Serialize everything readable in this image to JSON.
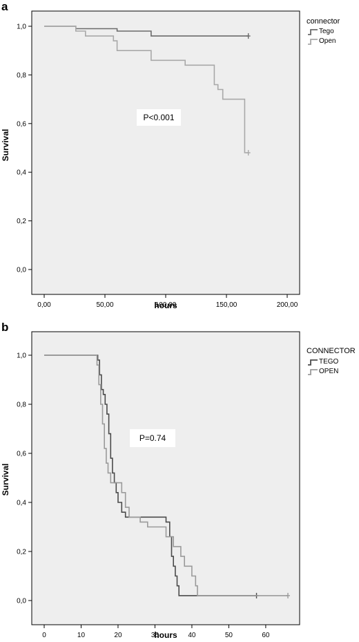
{
  "chart_data": [
    {
      "panel_label": "a",
      "type": "line",
      "subtype": "kaplan-meier step",
      "xlabel": "hours",
      "ylabel": "Survival",
      "xlim": [
        0,
        200
      ],
      "ylim": [
        0,
        1
      ],
      "x_ticks": [
        0,
        50,
        100,
        150,
        200
      ],
      "x_tick_labels": [
        "0,00",
        "50,00",
        "100,00",
        "150,00",
        "200,00"
      ],
      "y_ticks": [
        0,
        0.2,
        0.4,
        0.6,
        0.8,
        1.0
      ],
      "y_tick_labels": [
        "0,0",
        "0,2",
        "0,4",
        "0,6",
        "0,8",
        "1,0"
      ],
      "legend_title": "connector",
      "legend_position": "right",
      "annotation": "P<0.001",
      "plot_background": "#eeeeee",
      "series": [
        {
          "name": "Tego",
          "color": "#6a6a6a",
          "points": [
            [
              0,
              1.0
            ],
            [
              26,
              1.0
            ],
            [
              26,
              0.99
            ],
            [
              60,
              0.99
            ],
            [
              60,
              0.98
            ],
            [
              88,
              0.98
            ],
            [
              88,
              0.96
            ],
            [
              168,
              0.96
            ]
          ],
          "censored": [
            [
              168,
              0.96
            ]
          ]
        },
        {
          "name": "Open",
          "color": "#a8a8a8",
          "points": [
            [
              0,
              1.0
            ],
            [
              26,
              1.0
            ],
            [
              26,
              0.98
            ],
            [
              34,
              0.98
            ],
            [
              34,
              0.96
            ],
            [
              57,
              0.96
            ],
            [
              57,
              0.94
            ],
            [
              60,
              0.94
            ],
            [
              60,
              0.9
            ],
            [
              88,
              0.9
            ],
            [
              88,
              0.86
            ],
            [
              116,
              0.86
            ],
            [
              116,
              0.84
            ],
            [
              140,
              0.84
            ],
            [
              140,
              0.76
            ],
            [
              143,
              0.76
            ],
            [
              143,
              0.74
            ],
            [
              147,
              0.74
            ],
            [
              147,
              0.7
            ],
            [
              165,
              0.7
            ],
            [
              165,
              0.48
            ],
            [
              168,
              0.48
            ]
          ],
          "censored": [
            [
              168,
              0.48
            ]
          ]
        }
      ]
    },
    {
      "panel_label": "b",
      "type": "line",
      "subtype": "kaplan-meier step",
      "xlabel": "hours",
      "ylabel": "Survival",
      "xlim": [
        0,
        66
      ],
      "ylim": [
        0,
        1
      ],
      "x_ticks": [
        0,
        10,
        20,
        30,
        40,
        50,
        60
      ],
      "x_tick_labels": [
        "0",
        "10",
        "20",
        "30",
        "40",
        "50",
        "60"
      ],
      "y_ticks": [
        0,
        0.2,
        0.4,
        0.6,
        0.8,
        1.0
      ],
      "y_tick_labels": [
        "0,0",
        "0,2",
        "0,4",
        "0,6",
        "0,8",
        "1,0"
      ],
      "legend_title": "CONNECTOR",
      "legend_position": "right",
      "annotation": "P=0.74",
      "plot_background": "#eeeeee",
      "series": [
        {
          "name": "TEGO",
          "color": "#4a4a4a",
          "points": [
            [
              0,
              1.0
            ],
            [
              14.5,
              1.0
            ],
            [
              14.5,
              0.98
            ],
            [
              15,
              0.98
            ],
            [
              15,
              0.92
            ],
            [
              15.5,
              0.92
            ],
            [
              15.5,
              0.86
            ],
            [
              16,
              0.86
            ],
            [
              16,
              0.84
            ],
            [
              16.5,
              0.84
            ],
            [
              16.5,
              0.8
            ],
            [
              17,
              0.8
            ],
            [
              17,
              0.76
            ],
            [
              17.5,
              0.76
            ],
            [
              17.5,
              0.68
            ],
            [
              18,
              0.68
            ],
            [
              18,
              0.58
            ],
            [
              18.5,
              0.58
            ],
            [
              18.5,
              0.52
            ],
            [
              19,
              0.52
            ],
            [
              19,
              0.48
            ],
            [
              19.5,
              0.48
            ],
            [
              19.5,
              0.44
            ],
            [
              20,
              0.44
            ],
            [
              20,
              0.4
            ],
            [
              21,
              0.4
            ],
            [
              21,
              0.36
            ],
            [
              22,
              0.36
            ],
            [
              22,
              0.34
            ],
            [
              33,
              0.34
            ],
            [
              33,
              0.32
            ],
            [
              34,
              0.32
            ],
            [
              34,
              0.26
            ],
            [
              34.5,
              0.26
            ],
            [
              34.5,
              0.18
            ],
            [
              35,
              0.18
            ],
            [
              35,
              0.14
            ],
            [
              35.5,
              0.14
            ],
            [
              35.5,
              0.1
            ],
            [
              36,
              0.1
            ],
            [
              36,
              0.06
            ],
            [
              36.5,
              0.06
            ],
            [
              36.5,
              0.02
            ],
            [
              57.5,
              0.02
            ]
          ],
          "censored": [
            [
              57.5,
              0.02
            ]
          ]
        },
        {
          "name": "OPEN",
          "color": "#9a9a9a",
          "points": [
            [
              0,
              1.0
            ],
            [
              14.3,
              1.0
            ],
            [
              14.3,
              0.96
            ],
            [
              14.8,
              0.96
            ],
            [
              14.8,
              0.88
            ],
            [
              15.3,
              0.88
            ],
            [
              15.3,
              0.8
            ],
            [
              15.8,
              0.8
            ],
            [
              15.8,
              0.72
            ],
            [
              16.3,
              0.72
            ],
            [
              16.3,
              0.62
            ],
            [
              16.8,
              0.62
            ],
            [
              16.8,
              0.56
            ],
            [
              17.3,
              0.56
            ],
            [
              17.3,
              0.52
            ],
            [
              18,
              0.52
            ],
            [
              18,
              0.48
            ],
            [
              21,
              0.48
            ],
            [
              21,
              0.44
            ],
            [
              22,
              0.44
            ],
            [
              22,
              0.38
            ],
            [
              23,
              0.38
            ],
            [
              23,
              0.34
            ],
            [
              26,
              0.34
            ],
            [
              26,
              0.32
            ],
            [
              28,
              0.32
            ],
            [
              28,
              0.3
            ],
            [
              33,
              0.3
            ],
            [
              33,
              0.26
            ],
            [
              35,
              0.26
            ],
            [
              35,
              0.22
            ],
            [
              37,
              0.22
            ],
            [
              37,
              0.18
            ],
            [
              38,
              0.18
            ],
            [
              38,
              0.14
            ],
            [
              40,
              0.14
            ],
            [
              40,
              0.1
            ],
            [
              41,
              0.1
            ],
            [
              41,
              0.06
            ],
            [
              41.5,
              0.06
            ],
            [
              41.5,
              0.02
            ],
            [
              66,
              0.02
            ]
          ],
          "censored": [
            [
              66,
              0.02
            ]
          ]
        }
      ]
    }
  ]
}
